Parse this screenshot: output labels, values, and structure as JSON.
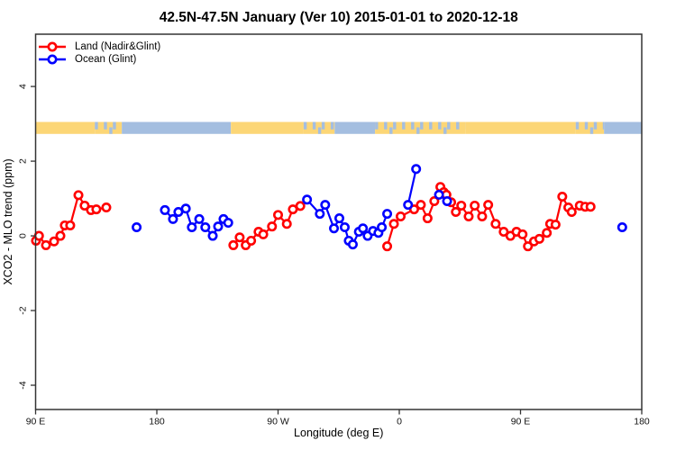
{
  "title": "42.5N-47.5N January (Ver 10)   2015-01-01 to 2020-12-18",
  "legend": {
    "items": [
      {
        "label": "Land (Nadir&Glint)",
        "color": "#ff0000"
      },
      {
        "label": "Ocean (Glint)",
        "color": "#0000ff"
      }
    ]
  },
  "chart_data": {
    "type": "line",
    "title": "42.5N-47.5N January (Ver 10)   2015-01-01 to 2020-12-18",
    "xlabel": "Longitude (deg E)",
    "ylabel": "XCO2 - MLO trend (ppm)",
    "xlim": [
      90,
      540
    ],
    "ylim": [
      -4.65,
      5.4
    ],
    "grid": false,
    "legend_position": "top-left",
    "xticks": [
      {
        "value": 90,
        "label": "90 E"
      },
      {
        "value": 180,
        "label": "180"
      },
      {
        "value": 270,
        "label": "90 W"
      },
      {
        "value": 360,
        "label": "0"
      },
      {
        "value": 450,
        "label": "90 E"
      },
      {
        "value": 540,
        "label": "180"
      }
    ],
    "yticks": [
      {
        "value": -4,
        "label": "-4"
      },
      {
        "value": -2,
        "label": "-2"
      },
      {
        "value": 0,
        "label": "0"
      },
      {
        "value": 2,
        "label": "2"
      },
      {
        "value": 4,
        "label": "4"
      }
    ],
    "series": [
      {
        "name": "Land (Nadir&Glint)",
        "color": "#ff0000",
        "marker": "open-circle",
        "runs": [
          [
            [
              90.3,
              -0.13
            ],
            [
              92.5,
              0.0
            ],
            [
              97.7,
              -0.25
            ],
            [
              103.7,
              -0.15
            ],
            [
              108.4,
              0.0
            ],
            [
              111.7,
              0.28
            ],
            [
              115.7,
              0.28
            ],
            [
              121.8,
              1.09
            ],
            [
              126.4,
              0.81
            ],
            [
              131.1,
              0.69
            ],
            [
              135.1,
              0.71
            ],
            [
              142.5,
              0.76
            ]
          ],
          [
            [
              236.8,
              -0.25
            ],
            [
              241.5,
              -0.04
            ],
            [
              246.0,
              -0.25
            ],
            [
              250.0,
              -0.13
            ],
            [
              255.5,
              0.11
            ],
            [
              259.0,
              0.04
            ],
            [
              265.5,
              0.25
            ],
            [
              270.0,
              0.56
            ],
            [
              276.5,
              0.32
            ],
            [
              281.0,
              0.71
            ],
            [
              286.5,
              0.8
            ]
          ],
          [
            [
              351.0,
              -0.28
            ],
            [
              356.0,
              0.32
            ],
            [
              361.0,
              0.52
            ],
            [
              371.0,
              0.71
            ],
            [
              376.0,
              0.83
            ],
            [
              381.0,
              0.47
            ],
            [
              386.0,
              0.93
            ],
            [
              390.5,
              1.31
            ],
            [
              393.0,
              1.17
            ],
            [
              395.0,
              1.1
            ],
            [
              398.5,
              0.9
            ],
            [
              402.0,
              0.64
            ],
            [
              406.0,
              0.81
            ],
            [
              411.5,
              0.52
            ],
            [
              416.0,
              0.81
            ],
            [
              421.5,
              0.52
            ],
            [
              426.0,
              0.83
            ],
            [
              431.5,
              0.32
            ],
            [
              437.5,
              0.11
            ],
            [
              442.5,
              0.0
            ],
            [
              447.0,
              0.11
            ],
            [
              451.5,
              0.04
            ],
            [
              455.5,
              -0.28
            ],
            [
              460.0,
              -0.15
            ],
            [
              464.0,
              -0.08
            ],
            [
              469.5,
              0.08
            ],
            [
              472.0,
              0.32
            ],
            [
              476.0,
              0.3
            ],
            [
              481.0,
              1.05
            ],
            [
              485.5,
              0.76
            ],
            [
              488.0,
              0.64
            ],
            [
              494.0,
              0.81
            ],
            [
              498.0,
              0.78
            ],
            [
              502.0,
              0.78
            ]
          ]
        ]
      },
      {
        "name": "Ocean (Glint)",
        "color": "#0000ff",
        "marker": "open-circle",
        "runs": [
          [
            [
              165.0,
              0.23
            ]
          ],
          [
            [
              186.0,
              0.69
            ],
            [
              192.0,
              0.45
            ],
            [
              196.0,
              0.64
            ],
            [
              201.5,
              0.73
            ],
            [
              206.0,
              0.23
            ],
            [
              211.5,
              0.45
            ],
            [
              216.0,
              0.23
            ],
            [
              221.5,
              0.0
            ],
            [
              225.5,
              0.25
            ],
            [
              229.5,
              0.45
            ],
            [
              233.0,
              0.35
            ]
          ],
          [
            [
              291.5,
              0.97
            ],
            [
              301.0,
              0.59
            ],
            [
              305.0,
              0.83
            ],
            [
              311.5,
              0.2
            ],
            [
              315.5,
              0.47
            ],
            [
              319.5,
              0.23
            ],
            [
              322.5,
              -0.13
            ],
            [
              325.5,
              -0.23
            ],
            [
              330.0,
              0.11
            ],
            [
              333.0,
              0.2
            ],
            [
              336.5,
              0.0
            ],
            [
              340.5,
              0.13
            ],
            [
              344.5,
              0.08
            ],
            [
              347.0,
              0.23
            ],
            [
              351.0,
              0.59
            ]
          ],
          [
            [
              366.5,
              0.83
            ],
            [
              372.5,
              1.79
            ]
          ],
          [
            [
              389.5,
              1.1
            ],
            [
              395.5,
              0.93
            ]
          ],
          [
            [
              525.5,
              0.23
            ]
          ]
        ]
      }
    ],
    "map_strip": {
      "description": "land-ocean mask band along longitude",
      "value_top": 3.05,
      "value_bottom": 2.73,
      "land_color": "#fcd676",
      "ocean_color": "#a4bee0",
      "segments": [
        {
          "from": 90,
          "to": 134,
          "type": "land"
        },
        {
          "from": 134,
          "to": 154,
          "type": "mixed"
        },
        {
          "from": 154,
          "to": 235,
          "type": "ocean"
        },
        {
          "from": 235,
          "to": 289,
          "type": "land"
        },
        {
          "from": 289,
          "to": 312,
          "type": "mixed"
        },
        {
          "from": 312,
          "to": 342,
          "type": "ocean"
        },
        {
          "from": 342,
          "to": 409,
          "type": "mixed"
        },
        {
          "from": 409,
          "to": 491,
          "type": "land"
        },
        {
          "from": 491,
          "to": 512,
          "type": "mixed"
        },
        {
          "from": 512,
          "to": 540,
          "type": "ocean"
        }
      ]
    }
  }
}
